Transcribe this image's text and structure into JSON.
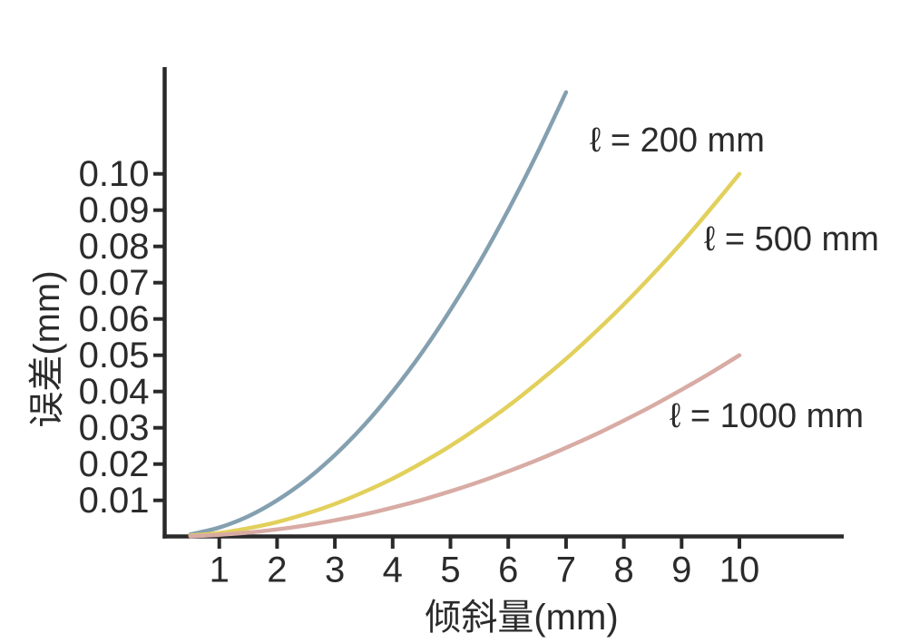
{
  "chart_data": {
    "type": "line",
    "title": "",
    "xlabel": "倾斜量(mm)",
    "ylabel": "误差(mm)",
    "grid": false,
    "legend_position": "inline-labels-right-of-curves",
    "axis_color": "#2a2a2a",
    "background_color": "#ffffff",
    "xlim": [
      0,
      11.8
    ],
    "ylim": [
      0,
      0.13
    ],
    "x_tick_values": [
      1,
      2,
      3,
      4,
      5,
      6,
      7,
      8,
      9,
      10
    ],
    "x_tick_labels": [
      "1",
      "2",
      "3",
      "4",
      "5",
      "6",
      "7",
      "8",
      "9",
      "10"
    ],
    "y_tick_values": [
      0.01,
      0.02,
      0.03,
      0.04,
      0.05,
      0.06,
      0.07,
      0.08,
      0.09,
      0.1
    ],
    "y_tick_labels": [
      "0.01",
      "0.02",
      "0.03",
      "0.04",
      "0.05",
      "0.06",
      "0.07",
      "0.08",
      "0.09",
      "0.10"
    ],
    "series": [
      {
        "name": "ℓ = 200 mm",
        "length_mm": 200,
        "color": "#84a0b0",
        "points": [
          [
            0.5,
            0.0006
          ],
          [
            1,
            0.0025
          ],
          [
            1.5,
            0.0056
          ],
          [
            2,
            0.01
          ],
          [
            2.5,
            0.0156
          ],
          [
            3,
            0.0225
          ],
          [
            3.5,
            0.0306
          ],
          [
            4,
            0.04
          ],
          [
            4.5,
            0.0506
          ],
          [
            5,
            0.0625
          ],
          [
            5.5,
            0.0756
          ],
          [
            6,
            0.09
          ],
          [
            6.5,
            0.1056
          ],
          [
            7,
            0.1225
          ]
        ]
      },
      {
        "name": "ℓ = 500 mm",
        "length_mm": 500,
        "color": "#e2d05c",
        "points": [
          [
            0.5,
            0.0003
          ],
          [
            1,
            0.001
          ],
          [
            1.5,
            0.0023
          ],
          [
            2,
            0.004
          ],
          [
            2.5,
            0.0063
          ],
          [
            3,
            0.009
          ],
          [
            3.5,
            0.0123
          ],
          [
            4,
            0.016
          ],
          [
            4.5,
            0.0203
          ],
          [
            5,
            0.025
          ],
          [
            5.5,
            0.0303
          ],
          [
            6,
            0.036
          ],
          [
            6.5,
            0.0423
          ],
          [
            7,
            0.049
          ],
          [
            7.5,
            0.0563
          ],
          [
            8,
            0.064
          ],
          [
            8.5,
            0.0723
          ],
          [
            9,
            0.081
          ],
          [
            9.5,
            0.0903
          ],
          [
            10,
            0.1
          ]
        ]
      },
      {
        "name": "ℓ = 1000 mm",
        "length_mm": 1000,
        "color": "#d8aba4",
        "points": [
          [
            0.5,
            0.0001
          ],
          [
            1,
            0.0005
          ],
          [
            1.5,
            0.0011
          ],
          [
            2,
            0.002
          ],
          [
            2.5,
            0.0031
          ],
          [
            3,
            0.0045
          ],
          [
            3.5,
            0.0061
          ],
          [
            4,
            0.008
          ],
          [
            4.5,
            0.0101
          ],
          [
            5,
            0.0125
          ],
          [
            5.5,
            0.0151
          ],
          [
            6,
            0.018
          ],
          [
            6.5,
            0.0211
          ],
          [
            7,
            0.0245
          ],
          [
            7.5,
            0.0281
          ],
          [
            8,
            0.032
          ],
          [
            8.5,
            0.0361
          ],
          [
            9,
            0.0405
          ],
          [
            9.5,
            0.0451
          ],
          [
            10,
            0.05
          ]
        ]
      }
    ]
  }
}
